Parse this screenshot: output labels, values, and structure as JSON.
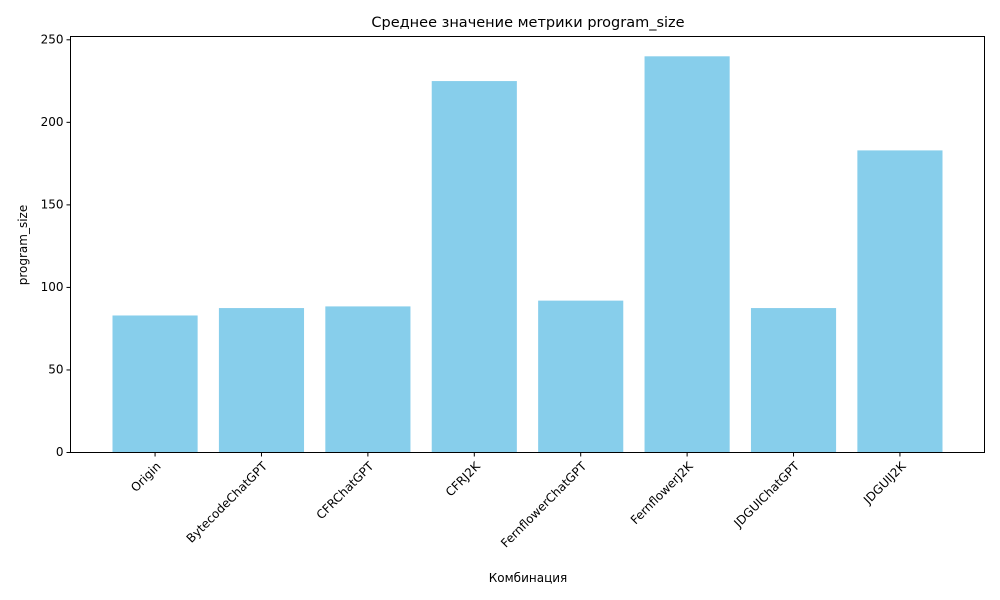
{
  "chart_data": {
    "type": "bar",
    "title": "Среднее значение метрики program_size",
    "xlabel": "Комбинация",
    "ylabel": "program_size",
    "categories": [
      "Origin",
      "BytecodeChatGPT",
      "CFRChatGPT",
      "CFRJ2K",
      "FernflowerChatGPT",
      "FernflowerJ2K",
      "JDGUIChatGPT",
      "JDGUIJ2K"
    ],
    "values": [
      83,
      87.5,
      88.5,
      225,
      92,
      240,
      87.5,
      183
    ],
    "ylim": [
      0,
      252
    ],
    "yticks": [
      0,
      50,
      100,
      150,
      200,
      250
    ],
    "grid": false,
    "bar_color": "#87CEEB"
  }
}
